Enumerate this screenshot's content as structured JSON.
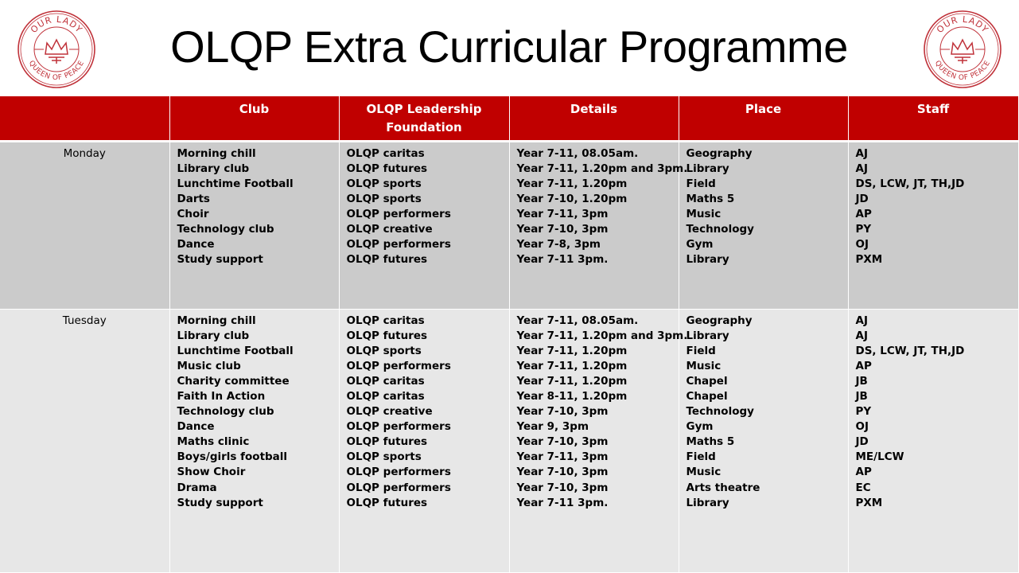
{
  "title": "OLQP Extra Curricular Programme",
  "logo": {
    "top_text": "OUR LADY",
    "bottom_text": "QUEEN OF PEACE",
    "color": "#c0323a"
  },
  "header": {
    "day": "",
    "club": "Club",
    "leadership": "OLQP Leadership Foundation",
    "details": "Details",
    "place": "Place",
    "staff": "Staff"
  },
  "days": [
    {
      "day": "Monday",
      "club": [
        "Morning chill",
        "Library club",
        "Lunchtime Football",
        "Darts",
        "Choir",
        "Technology club",
        "Dance",
        "Study support"
      ],
      "leadership": [
        "OLQP caritas",
        "OLQP futures",
        "OLQP sports",
        "OLQP sports",
        "OLQP performers",
        "OLQP creative",
        "OLQP performers",
        "OLQP futures"
      ],
      "details": [
        "Year 7-11, 08.05am.",
        "Year 7-11, 1.20pm and 3pm.",
        "Year 7-11, 1.20pm",
        "Year 7-10, 1.20pm",
        "Year 7-11, 3pm",
        "Year 7-10, 3pm",
        "Year 7-8, 3pm",
        "Year 7-11 3pm."
      ],
      "place": [
        "Geography",
        "Library",
        "Field",
        "Maths 5",
        "Music",
        "Technology",
        "Gym",
        "Library"
      ],
      "staff": [
        "AJ",
        "AJ",
        "DS, LCW, JT, TH,JD",
        "JD",
        "AP",
        "PY",
        "OJ",
        "PXM"
      ]
    },
    {
      "day": "Tuesday",
      "club": [
        "Morning chill",
        "Library club",
        "Lunchtime Football",
        "Music club",
        "Charity committee",
        "Faith In Action",
        "Technology club",
        "Dance",
        "Maths clinic",
        "Boys/girls football",
        "Show Choir",
        "Drama",
        "Study support"
      ],
      "leadership": [
        "OLQP caritas",
        "OLQP futures",
        "OLQP sports",
        "OLQP performers",
        "OLQP caritas",
        "OLQP caritas",
        "OLQP creative",
        "OLQP performers",
        "OLQP futures",
        "OLQP sports",
        "OLQP performers",
        "OLQP performers",
        "OLQP futures"
      ],
      "details": [
        "Year 7-11, 08.05am.",
        "Year 7-11, 1.20pm and 3pm.",
        "Year 7-11, 1.20pm",
        "Year 7-11, 1.20pm",
        "Year 7-11, 1.20pm",
        "Year 8-11, 1.20pm",
        "Year 7-10, 3pm",
        "Year 9, 3pm",
        "Year 7-10, 3pm",
        "Year 7-11, 3pm",
        "Year 7-10, 3pm",
        "Year 7-10, 3pm",
        "Year 7-11 3pm."
      ],
      "place": [
        "Geography",
        "Library",
        "Field",
        "Music",
        "Chapel",
        "Chapel",
        "Technology",
        "Gym",
        "Maths 5",
        "Field",
        "Music",
        "Arts theatre",
        "Library"
      ],
      "staff": [
        "AJ",
        "AJ",
        "DS, LCW, JT, TH,JD",
        "AP",
        "JB",
        "JB",
        "PY",
        "OJ",
        "JD",
        "ME/LCW",
        "AP",
        "EC",
        "PXM"
      ]
    }
  ]
}
